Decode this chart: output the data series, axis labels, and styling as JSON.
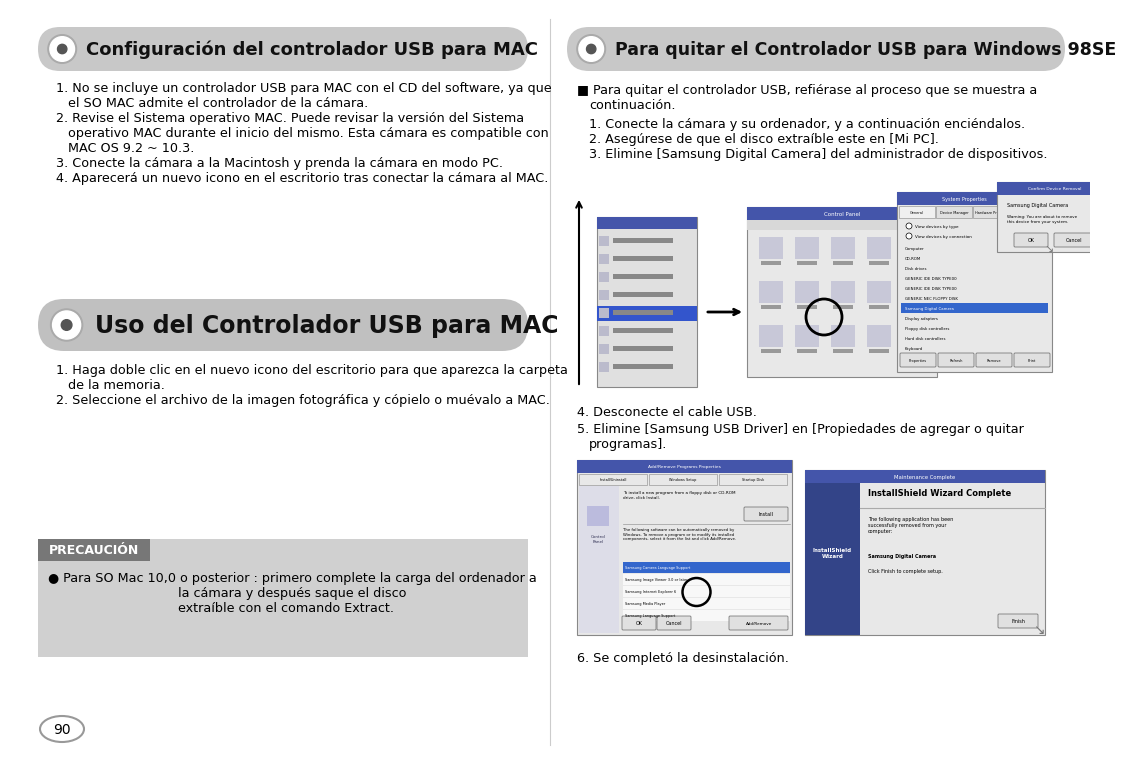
{
  "bg_color": "#ffffff",
  "page_number": "90",
  "left_col": {
    "section1_title": "Configuración del controlador USB para MAC",
    "section1_items": [
      "1. No se incluye un controlador USB para MAC con el CD del software, ya que\n   el SO MAC admite el controlador de la cámara.",
      "2. Revise el Sistema operativo MAC. Puede revisar la versión del Sistema\n   operativo MAC durante el inicio del mismo. Esta cámara es compatible con\n   MAC OS 9.2 ~ 10.3.",
      "3. Conecte la cámara a la Macintosh y prenda la cámara en modo PC.",
      "4. Aparecerá un nuevo icono en el escritorio tras conectar la cámara al MAC."
    ],
    "section2_title": "Uso del Controlador USB para MAC",
    "section2_items": [
      "1. Haga doble clic en el nuevo icono del escritorio para que aparezca la carpeta\n   de la memoria.",
      "2. Seleccione el archivo de la imagen fotográfica y cópielo o muévalo a MAC."
    ],
    "precaucion_title": "PRECAUCIÓN",
    "precaucion_bullet": "● Para SO Mac 10,0 o posterior : primero complete la carga del ordenador a",
    "precaucion_line2": "la cámara y después saque el disco",
    "precaucion_line3": "extraíble con el comando Extract."
  },
  "right_col": {
    "section_title": "Para quitar el Controlador USB para Windows 98SE",
    "bullet_text": "■ Para quitar el controlador USB, refiérase al proceso que se muestra a",
    "bullet_line2": "continuación.",
    "items": [
      "1. Conecte la cámara y su ordenador, y a continuación enciéndalos.",
      "2. Asegúrese de que el disco extraíble este en [Mi PC].",
      "3. Elimine [Samsung Digital Camera] del administrador de dispositivos."
    ],
    "item4": "4. Desconecte el cable USB.",
    "item5": "5. Elimine [Samsung USB Driver] en [Propiedades de agregar o quitar",
    "item5b": "   programas].",
    "item6": "6. Se completó la desinstalación."
  }
}
